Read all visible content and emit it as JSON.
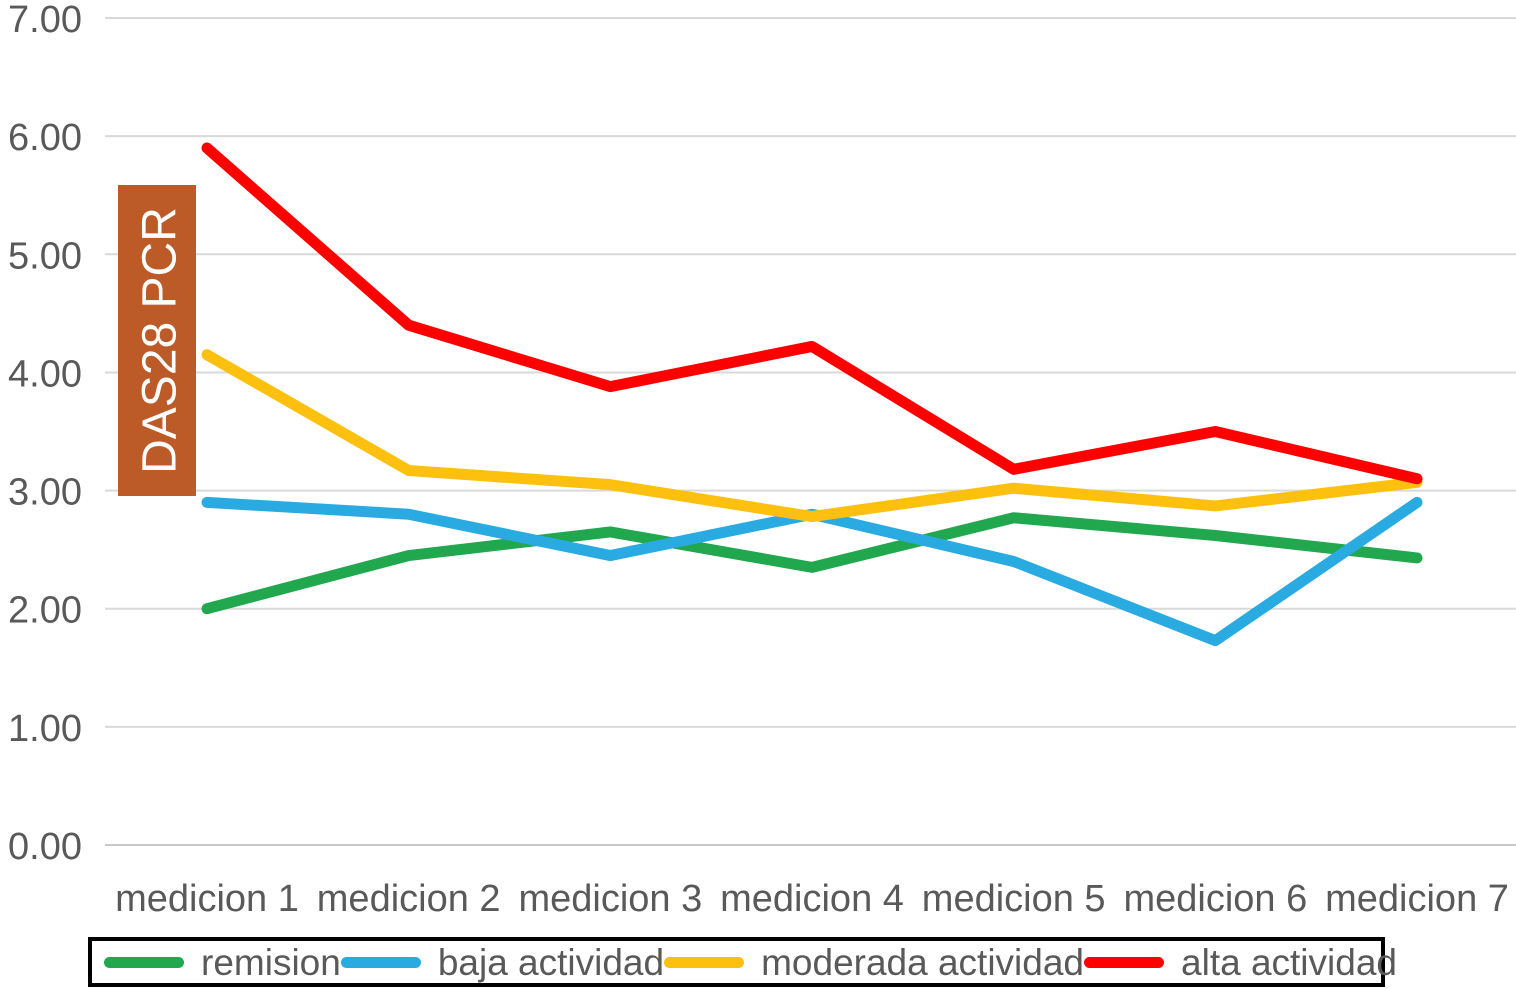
{
  "chart_data": {
    "type": "line",
    "title": "",
    "ylabel": "DAS28 PCR",
    "xlabel": "",
    "categories": [
      "medicion 1",
      "medicion 2",
      "medicion 3",
      "medicion 4",
      "medicion 5",
      "medicion 6",
      "medicion 7"
    ],
    "series": [
      {
        "name": "remision",
        "color": "#21A84F",
        "values": [
          2.0,
          2.45,
          2.65,
          2.35,
          2.77,
          2.62,
          2.43
        ]
      },
      {
        "name": "baja actividad",
        "color": "#29ABE2",
        "values": [
          2.9,
          2.8,
          2.45,
          2.8,
          2.4,
          1.73,
          2.9
        ]
      },
      {
        "name": "moderada actividad",
        "color": "#FDC00F",
        "values": [
          4.15,
          3.17,
          3.05,
          2.78,
          3.02,
          2.87,
          3.07
        ]
      },
      {
        "name": "alta actividad",
        "color": "#FE0000",
        "values": [
          5.9,
          4.4,
          3.88,
          4.22,
          3.18,
          3.5,
          3.1
        ]
      }
    ],
    "y_axis": {
      "min": 0,
      "max": 7,
      "step": 1,
      "tick_labels": [
        "0.00",
        "1.00",
        "2.00",
        "3.00",
        "4.00",
        "5.00",
        "6.00",
        "7.00"
      ]
    },
    "grid": true,
    "legend_position": "bottom",
    "ylabel_box": {
      "text": "DAS28 PCR",
      "background_color": "#BD5B28",
      "text_color": "#FFFFFF"
    }
  },
  "colors": {
    "gridline": "#D9D9D9",
    "axis_line": "#C9C9C9",
    "tick_text": "#595959",
    "legend_border": "#000000",
    "background": "#FFFFFF"
  }
}
